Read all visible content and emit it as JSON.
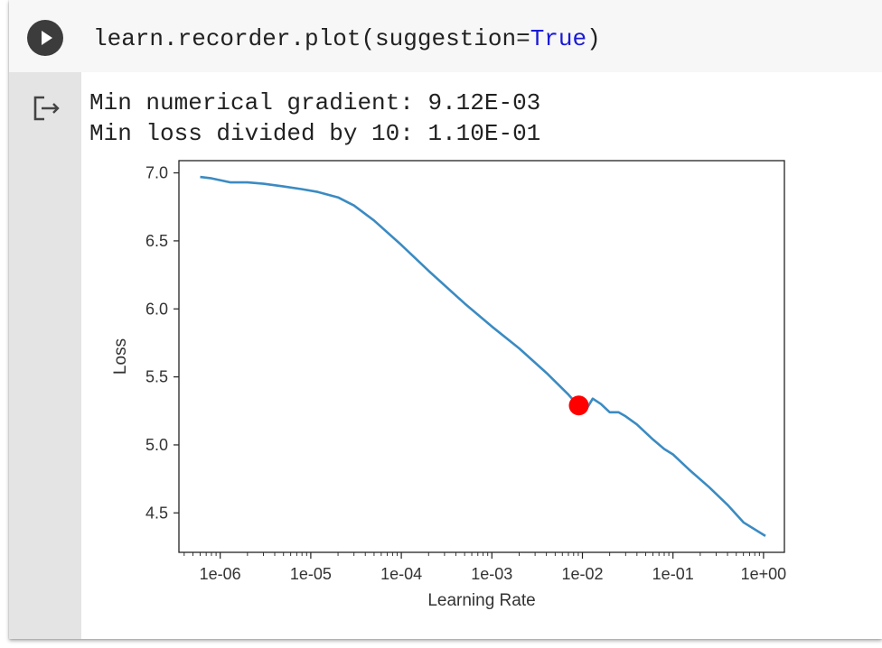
{
  "code_cell": {
    "code_prefix": "learn.recorder.plot(suggestion=",
    "code_keyword": "True",
    "code_suffix": ")"
  },
  "output": {
    "lines": [
      "Min numerical gradient: 9.12E-03",
      "Min loss divided by 10: 1.10E-01"
    ]
  },
  "colors": {
    "line": "#3b8bc2",
    "marker": "#ff0000",
    "keyword": "#1a1ad6"
  },
  "chart_data": {
    "type": "line",
    "title": "",
    "xlabel": "Learning Rate",
    "ylabel": "Loss",
    "xscale": "log",
    "xlim": [
      3.5e-07,
      1.7
    ],
    "ylim": [
      4.21,
      7.09
    ],
    "xticks": [
      1e-06,
      1e-05,
      0.0001,
      0.001,
      0.01,
      0.1,
      1
    ],
    "xtick_labels": [
      "1e-06",
      "1e-05",
      "1e-04",
      "1e-03",
      "1e-02",
      "1e-01",
      "1e+00"
    ],
    "yticks": [
      4.5,
      5.0,
      5.5,
      6.0,
      6.5,
      7.0
    ],
    "ytick_labels": [
      "4.5",
      "5.0",
      "5.5",
      "6.0",
      "6.5",
      "7.0"
    ],
    "grid": false,
    "series": [
      {
        "x": [
          6e-07,
          8e-07,
          1.3e-06,
          2e-06,
          3e-06,
          5e-06,
          8e-06,
          1.2e-05,
          2e-05,
          3e-05,
          5e-05,
          0.0001,
          0.0002,
          0.0005,
          0.001,
          0.002,
          0.004,
          0.007,
          0.009,
          0.011,
          0.013,
          0.016,
          0.02,
          0.025,
          0.03,
          0.04,
          0.06,
          0.08,
          0.1,
          0.15,
          0.25,
          0.4,
          0.6,
          1.05
        ],
        "y": [
          6.97,
          6.96,
          6.93,
          6.93,
          6.92,
          6.9,
          6.88,
          6.86,
          6.82,
          6.76,
          6.65,
          6.47,
          6.28,
          6.04,
          5.87,
          5.71,
          5.53,
          5.37,
          5.29,
          5.26,
          5.34,
          5.3,
          5.24,
          5.24,
          5.21,
          5.15,
          5.04,
          4.97,
          4.93,
          4.82,
          4.69,
          4.56,
          4.43,
          4.33
        ]
      }
    ],
    "marker": {
      "x": 0.00912,
      "y": 5.29
    }
  }
}
